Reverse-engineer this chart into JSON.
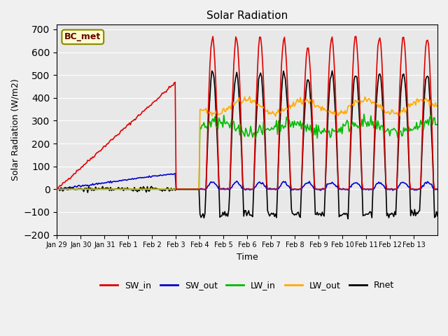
{
  "title": "Solar Radiation",
  "xlabel": "Time",
  "ylabel": "Solar Radiation (W/m2)",
  "annotation": "BC_met",
  "ylim": [
    -200,
    720
  ],
  "yticks": [
    -200,
    -100,
    0,
    100,
    200,
    300,
    400,
    500,
    600,
    700
  ],
  "x_tick_labels": [
    "Jan 29",
    "Jan 30",
    "Jan 31",
    "Feb 1",
    "Feb 2",
    "Feb 3",
    "Feb 4",
    "Feb 5",
    "Feb 6",
    "Feb 7",
    "Feb 8",
    "Feb 9",
    "Feb 10",
    "Feb 11",
    "Feb 12",
    "Feb 13"
  ],
  "colors": {
    "SW_in": "#dd0000",
    "SW_out": "#0000cc",
    "LW_in": "#00bb00",
    "LW_out": "#ffaa00",
    "Rnet": "#000000"
  },
  "legend_labels": [
    "SW_in",
    "SW_out",
    "LW_in",
    "LW_out",
    "Rnet"
  ],
  "bg_color": "#e8e8e8",
  "grid_color": "#ffffff",
  "annotation_bg": "#ffffcc",
  "annotation_border": "#888800"
}
